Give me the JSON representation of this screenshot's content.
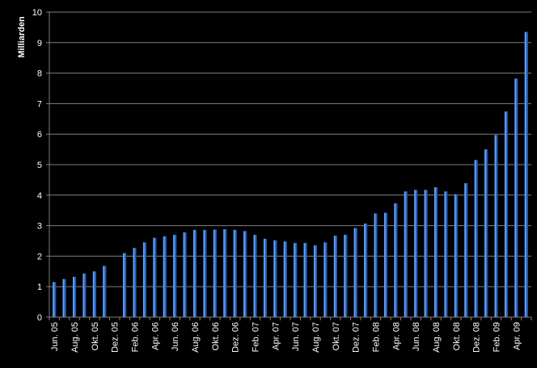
{
  "colors": {
    "background": "#000000",
    "plot_background": "#000000",
    "gridline": "#808080",
    "axis": "#808080",
    "bar_fill": "#2f6fd0",
    "bar_highlight": "#6ea4f0",
    "bar_shadow": "#1c4fa0",
    "text": "#ffffff"
  },
  "chart_data": {
    "type": "bar",
    "title": "",
    "xlabel": "",
    "ylabel": "Milliarden",
    "ylim": [
      0,
      10
    ],
    "yticks": [
      0,
      1,
      2,
      3,
      4,
      5,
      6,
      7,
      8,
      9,
      10
    ],
    "grid": true,
    "legend": "none",
    "categories": [
      "Jun. 05",
      "Jul. 05",
      "Aug. 05",
      "Sep. 05",
      "Okt. 05",
      "Nov. 05",
      "Dez. 05",
      "Jan. 06",
      "Feb. 06",
      "Mrz. 06",
      "Apr. 06",
      "Mai. 06",
      "Jun. 06",
      "Jul. 06",
      "Aug. 06",
      "Sep. 06",
      "Okt. 06",
      "Nov. 06",
      "Dez. 06",
      "Jan. 07",
      "Feb. 07",
      "Mrz. 07",
      "Apr. 07",
      "Mai. 07",
      "Jun. 07",
      "Jul. 07",
      "Aug. 07",
      "Sep. 07",
      "Okt. 07",
      "Nov. 07",
      "Dez. 07",
      "Jan. 08",
      "Feb. 08",
      "Mrz. 08",
      "Apr. 08",
      "Mai. 08",
      "Jun. 08",
      "Jul. 08",
      "Aug. 08",
      "Sep. 08",
      "Okt. 08",
      "Nov. 08",
      "Dez. 08",
      "Jan. 09",
      "Feb. 09",
      "Mrz. 09",
      "Apr. 09",
      "Mai. 09"
    ],
    "visible_tick_labels": [
      "Jun. 05",
      "Aug. 05",
      "Okt. 05",
      "Dez. 05",
      "Feb. 06",
      "Apr. 06",
      "Jun. 06",
      "Aug. 06",
      "Okt. 06",
      "Dez. 06",
      "Feb. 07",
      "Apr. 07",
      "Jun. 07",
      "Aug. 07",
      "Okt. 07",
      "Dez. 07",
      "Feb. 08",
      "Apr. 08",
      "Jun. 08",
      "Aug. 08",
      "Okt. 08",
      "Dez. 08",
      "Feb. 09",
      "Apr. 09"
    ],
    "values": [
      1.15,
      1.25,
      1.32,
      1.43,
      1.5,
      1.68,
      0,
      2.1,
      2.27,
      2.45,
      2.6,
      2.65,
      2.7,
      2.78,
      2.86,
      2.86,
      2.87,
      2.88,
      2.86,
      2.82,
      2.7,
      2.57,
      2.52,
      2.48,
      2.43,
      2.43,
      2.35,
      2.45,
      2.67,
      2.7,
      2.92,
      3.07,
      3.4,
      3.42,
      3.73,
      4.12,
      4.17,
      4.17,
      4.26,
      4.12,
      4.03,
      4.39,
      5.15,
      5.5,
      5.97,
      6.74,
      7.82,
      9.35
    ]
  }
}
